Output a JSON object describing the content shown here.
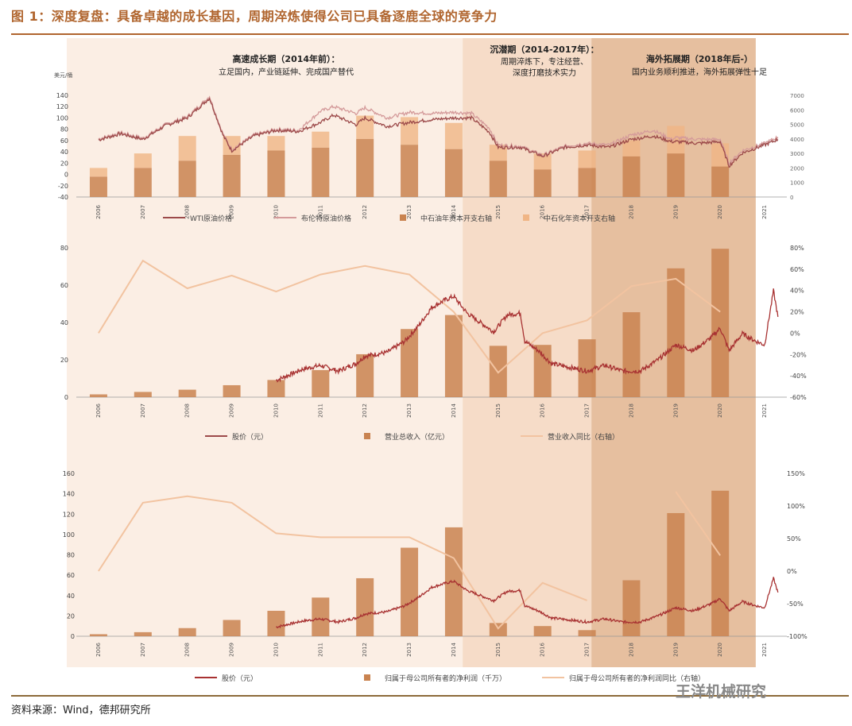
{
  "figure_title": "图 1：深度复盘：具备卓越的成长基因，周期淬炼使得公司已具备逐鹿全球的竞争力",
  "source_text": "资料来源：Wind，德邦研究所",
  "watermark": "王洋机械研究",
  "colors": {
    "title": "#b0652e",
    "phase1_bg": "#fbeee4",
    "phase2_bg": "#f6dcc8",
    "phase3_bg": "#e6bf9f",
    "wti_line": "#9c4a4a",
    "brent_line": "#d49a9a",
    "bar_dark": "#c98350",
    "bar_light": "#f0b585",
    "growth_line": "#f2c3a0",
    "price_line": "#a83232"
  },
  "phases": [
    {
      "name": "高速成长期（2014年前）：",
      "desc": "立足国内，产业链延伸、完成国产替代",
      "start": 2006,
      "end": 2014.7
    },
    {
      "name": "沉潜期（2014-2017年）：",
      "desc": "周期淬炼下，专注经营、",
      "desc2": "深度打磨技术实力",
      "start": 2014.7,
      "end": 2017.6
    },
    {
      "name": "海外拓展期（2018年后-）",
      "desc": "国内业务顺利推进，海外拓展弹性十足",
      "start": 2017.6,
      "end": 2021.3
    }
  ],
  "chart_data": [
    {
      "id": "oil",
      "type": "bar+line",
      "y_unit_label": "美元/桶",
      "ylim": [
        -40,
        140
      ],
      "yticks": [
        -40,
        -20,
        0,
        20,
        40,
        60,
        80,
        100,
        120,
        140
      ],
      "ylim_right": [
        0,
        7000
      ],
      "yticks_right": [
        0,
        1000,
        2000,
        3000,
        4000,
        5000,
        6000,
        7000
      ],
      "categories": [
        "2006",
        "2007",
        "2008",
        "2009",
        "2010",
        "2011",
        "2012",
        "2013",
        "2014",
        "2015",
        "2016",
        "2017",
        "2018",
        "2019",
        "2020",
        "2021"
      ],
      "series": [
        {
          "name": "中石油年资本开支右轴",
          "kind": "bar",
          "values": [
            1400,
            2000,
            2500,
            2900,
            3200,
            3400,
            4000,
            3600,
            3300,
            2500,
            1900,
            2000,
            2800,
            3000,
            2100,
            null
          ]
        },
        {
          "name": "中石化年资本开支右轴",
          "kind": "bar",
          "values": [
            600,
            1000,
            1700,
            1300,
            1000,
            1100,
            1600,
            1900,
            1800,
            1100,
            1100,
            1200,
            1100,
            1900,
            1600,
            null
          ]
        },
        {
          "name": "WTI原油价格",
          "kind": "line",
          "x": [
            2006,
            2006.5,
            2007,
            2007.5,
            2008,
            2008.5,
            2008.8,
            2009,
            2009.5,
            2010,
            2010.5,
            2011,
            2011.3,
            2011.8,
            2012,
            2012.5,
            2013,
            2013.5,
            2014,
            2014.4,
            2014.8,
            2015,
            2015.5,
            2016,
            2016.5,
            2017,
            2017.5,
            2018,
            2018.5,
            2018.9,
            2019,
            2019.5,
            2020,
            2020.2,
            2020.5,
            2021,
            2021.3
          ],
          "values": [
            61,
            72,
            62,
            86,
            100,
            135,
            70,
            42,
            68,
            78,
            76,
            92,
            105,
            88,
            100,
            85,
            92,
            97,
            100,
            100,
            75,
            48,
            48,
            32,
            48,
            52,
            48,
            62,
            68,
            58,
            58,
            55,
            58,
            15,
            38,
            52,
            62
          ]
        },
        {
          "name": "布伦特原油价格",
          "kind": "line",
          "x": [
            2006,
            2006.5,
            2007,
            2007.5,
            2008,
            2008.5,
            2008.8,
            2009,
            2009.5,
            2010,
            2010.5,
            2011,
            2011.3,
            2011.8,
            2012,
            2012.5,
            2013,
            2013.5,
            2014,
            2014.4,
            2014.8,
            2015,
            2015.5,
            2016,
            2016.5,
            2017,
            2017.5,
            2018,
            2018.5,
            2018.9,
            2019,
            2019.5,
            2020,
            2020.2,
            2020.5,
            2021,
            2021.3
          ],
          "values": [
            63,
            74,
            64,
            88,
            102,
            138,
            72,
            44,
            70,
            80,
            78,
            112,
            120,
            108,
            118,
            100,
            110,
            108,
            110,
            108,
            82,
            52,
            50,
            34,
            50,
            55,
            52,
            70,
            78,
            62,
            65,
            62,
            62,
            20,
            42,
            55,
            66
          ]
        }
      ]
    },
    {
      "id": "revenue",
      "type": "bar+line",
      "ylim": [
        0,
        80
      ],
      "yticks": [
        0,
        20,
        40,
        60,
        80
      ],
      "ylim_right": [
        -60,
        80
      ],
      "yticks_right": [
        "-60%",
        "-40%",
        "-20%",
        "0%",
        "20%",
        "40%",
        "60%",
        "80%"
      ],
      "yticks_right_values": [
        -60,
        -40,
        -20,
        0,
        20,
        40,
        60,
        80
      ],
      "categories": [
        "2006",
        "2007",
        "2008",
        "2009",
        "2010",
        "2011",
        "2012",
        "2013",
        "2014",
        "2015",
        "2016",
        "2017",
        "2018",
        "2019",
        "2020",
        "2021"
      ],
      "series": [
        {
          "name": "营业总收入（亿元）",
          "kind": "bar",
          "values": [
            1.5,
            2.8,
            4.0,
            6.4,
            9.2,
            14.5,
            23.0,
            36.5,
            44.0,
            27.5,
            28.0,
            31.0,
            45.5,
            69.0,
            79.5,
            null
          ]
        },
        {
          "name": "营业收入同比（右轴）",
          "kind": "line",
          "axis": "right",
          "values": [
            0,
            68,
            42,
            54,
            39,
            55,
            63,
            55,
            20,
            -37,
            0,
            12,
            44,
            51,
            20,
            null
          ]
        },
        {
          "name": "股价（元）",
          "kind": "line",
          "x": [
            2010.0,
            2010.3,
            2010.6,
            2011.0,
            2011.4,
            2011.8,
            2012.0,
            2012.5,
            2012.9,
            2013.2,
            2013.5,
            2013.8,
            2014.0,
            2014.3,
            2014.6,
            2014.9,
            2015.0,
            2015.2,
            2015.5,
            2015.6,
            2015.9,
            2016.2,
            2016.6,
            2017.0,
            2017.4,
            2017.8,
            2018.2,
            2018.6,
            2019.0,
            2019.4,
            2019.8,
            2020.0,
            2020.2,
            2020.5,
            2020.8,
            2021.0,
            2021.2,
            2021.3
          ],
          "values": [
            9,
            12,
            15,
            17,
            14,
            18,
            22,
            24,
            30,
            38,
            48,
            52,
            54,
            45,
            40,
            35,
            38,
            44,
            45,
            30,
            25,
            18,
            16,
            14,
            17,
            14,
            14,
            20,
            28,
            25,
            32,
            37,
            25,
            34,
            30,
            28,
            57,
            43
          ]
        }
      ]
    },
    {
      "id": "netprofit",
      "type": "bar+line",
      "ylim": [
        0,
        160
      ],
      "yticks": [
        0,
        20,
        40,
        60,
        80,
        100,
        120,
        140,
        160
      ],
      "ylim_right": [
        -100,
        150
      ],
      "yticks_right": [
        "-100%",
        "-50%",
        "0%",
        "50%",
        "100%",
        "150%"
      ],
      "yticks_right_values": [
        -100,
        -50,
        0,
        50,
        100,
        150
      ],
      "categories": [
        "2006",
        "2007",
        "2008",
        "2009",
        "2010",
        "2011",
        "2012",
        "2013",
        "2014",
        "2015",
        "2016",
        "2017",
        "2018",
        "2019",
        "2020",
        "2021"
      ],
      "series": [
        {
          "name": "归属于母公司所有者的净利润（千万）",
          "kind": "bar",
          "values": [
            2,
            4,
            8,
            16,
            25,
            38,
            57,
            87,
            107,
            13,
            10,
            6,
            55,
            121,
            143,
            null
          ]
        },
        {
          "name": "归属于母公司所有者的净利润同比（右轴）",
          "kind": "line",
          "axis": "right",
          "values": [
            0,
            105,
            115,
            105,
            58,
            52,
            52,
            52,
            20,
            -88,
            -18,
            -45,
            null,
            122,
            24,
            null
          ]
        },
        {
          "name": "股价（元）",
          "kind": "line",
          "x": [
            2010.0,
            2010.3,
            2010.6,
            2011.0,
            2011.4,
            2011.8,
            2012.0,
            2012.5,
            2012.9,
            2013.2,
            2013.5,
            2013.8,
            2014.0,
            2014.3,
            2014.6,
            2014.9,
            2015.0,
            2015.2,
            2015.5,
            2015.6,
            2015.9,
            2016.2,
            2016.6,
            2017.0,
            2017.4,
            2017.8,
            2018.2,
            2018.6,
            2019.0,
            2019.4,
            2019.8,
            2020.0,
            2020.2,
            2020.5,
            2020.8,
            2021.0,
            2021.2,
            2021.3
          ],
          "values": [
            9,
            12,
            15,
            17,
            14,
            18,
            22,
            24,
            30,
            38,
            48,
            52,
            54,
            45,
            40,
            35,
            38,
            44,
            45,
            30,
            25,
            18,
            16,
            14,
            17,
            14,
            14,
            20,
            28,
            25,
            32,
            37,
            25,
            34,
            30,
            28,
            57,
            43
          ]
        }
      ]
    }
  ],
  "legends": {
    "oil": [
      "WTI原油价格",
      "布伦特原油价格",
      "中石油年资本开支右轴",
      "中石化年资本开支右轴"
    ],
    "revenue": [
      "股价（元）",
      "营业总收入（亿元）",
      "营业收入同比（右轴）"
    ],
    "netprofit": [
      "股价（元）",
      "归属于母公司所有者的净利润（千万）",
      "归属于母公司所有者的净利润同比（右轴）"
    ]
  }
}
